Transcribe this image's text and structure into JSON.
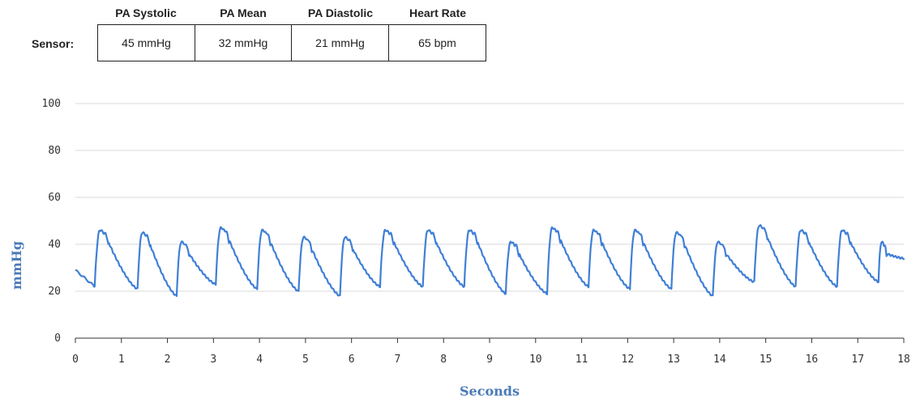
{
  "readout": {
    "row_label": "Sensor:",
    "columns": [
      {
        "header": "PA Systolic",
        "value": "45 mmHg"
      },
      {
        "header": "PA Mean",
        "value": "32 mmHg"
      },
      {
        "header": "PA Diastolic",
        "value": "21 mmHg"
      },
      {
        "header": "Heart Rate",
        "value": "65 bpm"
      }
    ]
  },
  "chart_data": {
    "type": "line",
    "title": "",
    "xlabel": "Seconds",
    "ylabel": "mmHg",
    "xlim": [
      0,
      18
    ],
    "ylim": [
      0,
      100
    ],
    "x_ticks": [
      "0",
      "1",
      "2",
      "3",
      "4",
      "5",
      "6",
      "7",
      "8",
      "9",
      "10",
      "11",
      "12",
      "13",
      "14",
      "15",
      "16",
      "17",
      "18"
    ],
    "y_ticks": [
      "0",
      "20",
      "40",
      "60",
      "80",
      "100"
    ],
    "grid": "horizontal",
    "color": "#3f7fd6",
    "series": [
      {
        "beats": [
          {
            "start": 0.0,
            "peak": 45,
            "trough": 22
          },
          {
            "start": 0.42,
            "peak": 46,
            "trough": 22
          },
          {
            "start": 1.35,
            "peak": 45,
            "trough": 21
          },
          {
            "start": 2.2,
            "peak": 41,
            "trough": 18
          },
          {
            "start": 3.05,
            "peak": 47,
            "trough": 23
          },
          {
            "start": 3.95,
            "peak": 46,
            "trough": 21
          },
          {
            "start": 4.85,
            "peak": 43,
            "trough": 20
          },
          {
            "start": 5.75,
            "peak": 43,
            "trough": 18
          },
          {
            "start": 6.62,
            "peak": 46,
            "trough": 22
          },
          {
            "start": 7.55,
            "peak": 46,
            "trough": 22
          },
          {
            "start": 8.45,
            "peak": 46,
            "trough": 22
          },
          {
            "start": 9.35,
            "peak": 41,
            "trough": 19
          },
          {
            "start": 10.25,
            "peak": 47,
            "trough": 19
          },
          {
            "start": 11.15,
            "peak": 46,
            "trough": 22
          },
          {
            "start": 12.05,
            "peak": 46,
            "trough": 21
          },
          {
            "start": 12.95,
            "peak": 45,
            "trough": 21
          },
          {
            "start": 13.85,
            "peak": 41,
            "trough": 18
          },
          {
            "start": 14.75,
            "peak": 48,
            "trough": 24
          },
          {
            "start": 15.65,
            "peak": 46,
            "trough": 22
          },
          {
            "start": 16.55,
            "peak": 46,
            "trough": 22
          },
          {
            "start": 17.45,
            "peak": 41,
            "trough": 24
          }
        ],
        "start_value": 29,
        "end_value": 34
      }
    ]
  }
}
